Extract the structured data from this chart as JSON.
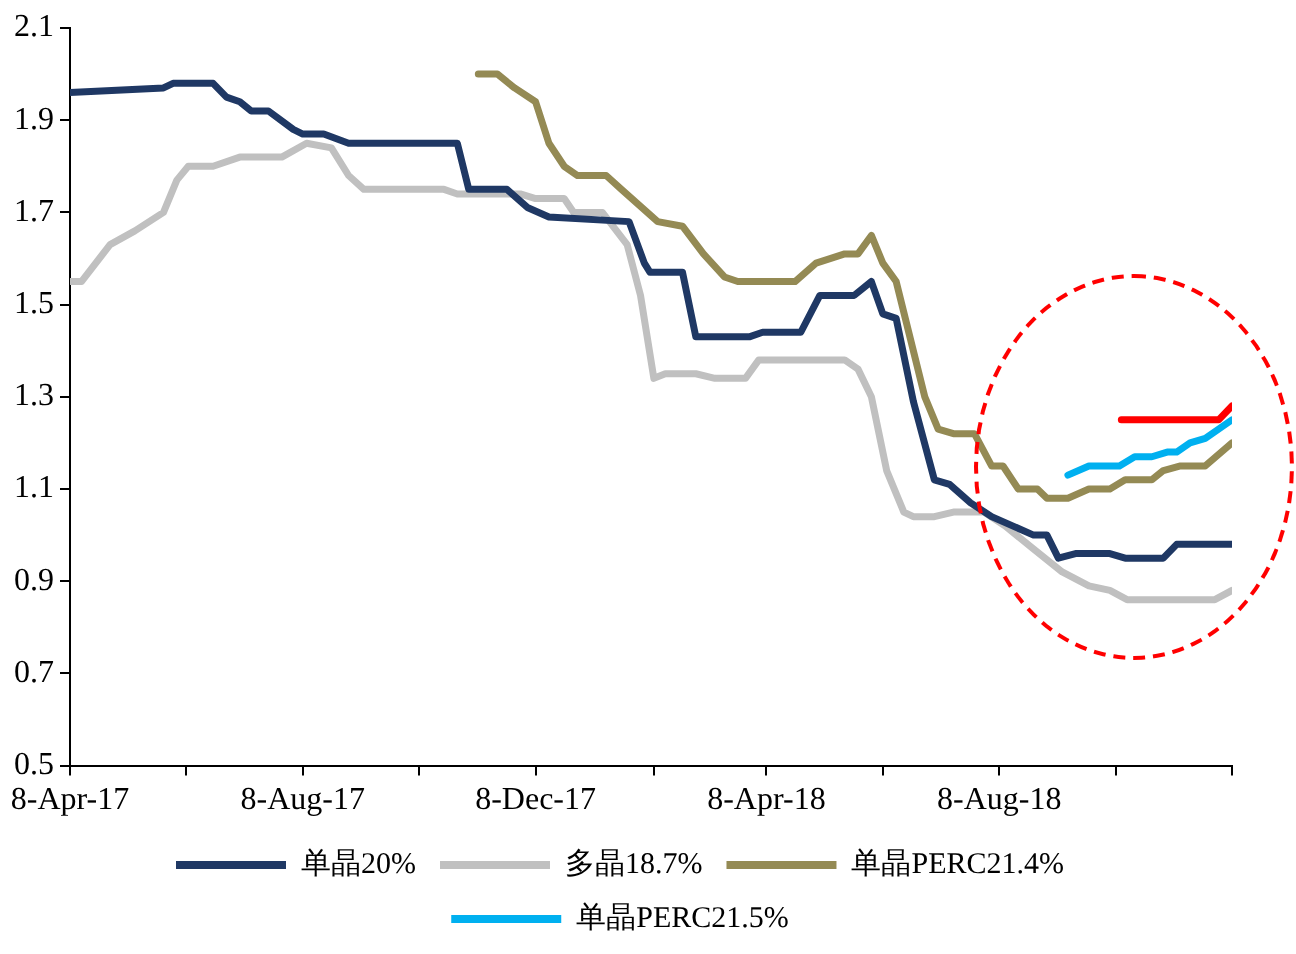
{
  "chart_data": {
    "type": "line",
    "ylim": [
      0.5,
      2.1
    ],
    "yticks": [
      0.5,
      0.7,
      0.9,
      1.1,
      1.3,
      1.5,
      1.7,
      1.9,
      2.1
    ],
    "xlim": [
      "2017-04-08",
      "2018-12-08"
    ],
    "xticks": [
      {
        "value": "2017-04-08",
        "label": "8-Apr-17"
      },
      {
        "value": "2017-06-08",
        "label": null
      },
      {
        "value": "2017-08-08",
        "label": "8-Aug-17"
      },
      {
        "value": "2017-10-08",
        "label": null
      },
      {
        "value": "2017-12-08",
        "label": "8-Dec-17"
      },
      {
        "value": "2018-02-08",
        "label": null
      },
      {
        "value": "2018-04-08",
        "label": "8-Apr-18"
      },
      {
        "value": "2018-06-08",
        "label": null
      },
      {
        "value": "2018-08-08",
        "label": "8-Aug-18"
      },
      {
        "value": "2018-10-08",
        "label": null
      },
      {
        "value": "2018-12-08",
        "label": null
      }
    ],
    "grid": false,
    "legend": "bottom",
    "marker": "none",
    "line_style": "solid",
    "series": [
      {
        "name": "单晶20%",
        "color": "#1f3864",
        "x": [
          "2017-04-08",
          "2017-05-27",
          "2017-06-01",
          "2017-06-22",
          "2017-06-29",
          "2017-07-06",
          "2017-07-12",
          "2017-07-21",
          "2017-08-03",
          "2017-08-08",
          "2017-08-19",
          "2017-09-01",
          "2017-10-28",
          "2017-11-03",
          "2017-11-23",
          "2017-12-04",
          "2017-12-15",
          "2018-01-26",
          "2018-02-03",
          "2018-02-06",
          "2018-02-23",
          "2018-03-02",
          "2018-03-30",
          "2018-04-06",
          "2018-04-26",
          "2018-05-06",
          "2018-05-11",
          "2018-05-24",
          "2018-06-02",
          "2018-06-08",
          "2018-06-15",
          "2018-06-24",
          "2018-07-05",
          "2018-07-13",
          "2018-07-24",
          "2018-08-04",
          "2018-08-15",
          "2018-08-26",
          "2018-09-02",
          "2018-09-08",
          "2018-09-17",
          "2018-10-05",
          "2018-10-13",
          "2018-11-02",
          "2018-11-09",
          "2018-12-08"
        ],
        "values": [
          1.96,
          1.97,
          1.98,
          1.98,
          1.95,
          1.94,
          1.92,
          1.92,
          1.88,
          1.87,
          1.87,
          1.85,
          1.85,
          1.75,
          1.75,
          1.71,
          1.69,
          1.68,
          1.59,
          1.57,
          1.57,
          1.43,
          1.43,
          1.44,
          1.44,
          1.52,
          1.52,
          1.52,
          1.55,
          1.48,
          1.47,
          1.29,
          1.12,
          1.11,
          1.07,
          1.04,
          1.02,
          1.0,
          1.0,
          0.95,
          0.96,
          0.96,
          0.95,
          0.95,
          0.98,
          0.98
        ]
      },
      {
        "name": "多晶18.7%",
        "color": "#c0c0c0",
        "x": [
          "2017-04-08",
          "2017-04-14",
          "2017-04-29",
          "2017-05-12",
          "2017-05-27",
          "2017-06-03",
          "2017-06-09",
          "2017-06-22",
          "2017-07-06",
          "2017-07-28",
          "2017-08-10",
          "2017-08-23",
          "2017-09-01",
          "2017-09-09",
          "2017-10-21",
          "2017-10-28",
          "2017-11-30",
          "2017-12-08",
          "2017-12-23",
          "2017-12-28",
          "2018-01-12",
          "2018-01-25",
          "2018-02-01",
          "2018-02-08",
          "2018-02-14",
          "2018-03-02",
          "2018-03-12",
          "2018-03-28",
          "2018-04-04",
          "2018-04-26",
          "2018-05-04",
          "2018-05-19",
          "2018-05-26",
          "2018-06-02",
          "2018-06-10",
          "2018-06-19",
          "2018-06-24",
          "2018-07-05",
          "2018-07-15",
          "2018-07-31",
          "2018-08-11",
          "2018-08-26",
          "2018-09-10",
          "2018-09-24",
          "2018-10-05",
          "2018-10-14",
          "2018-11-29",
          "2018-12-08"
        ],
        "values": [
          1.55,
          1.55,
          1.63,
          1.66,
          1.7,
          1.77,
          1.8,
          1.8,
          1.82,
          1.82,
          1.85,
          1.84,
          1.78,
          1.75,
          1.75,
          1.74,
          1.74,
          1.73,
          1.73,
          1.7,
          1.7,
          1.63,
          1.52,
          1.34,
          1.35,
          1.35,
          1.34,
          1.34,
          1.38,
          1.38,
          1.38,
          1.38,
          1.36,
          1.3,
          1.14,
          1.05,
          1.04,
          1.04,
          1.05,
          1.05,
          1.02,
          0.97,
          0.92,
          0.89,
          0.88,
          0.86,
          0.86,
          0.88
        ]
      },
      {
        "name": "单晶PERC21.4%",
        "color": "#948a54",
        "x": [
          "2017-11-08",
          "2017-11-18",
          "2017-11-27",
          "2017-12-08",
          "2017-12-15",
          "2017-12-23",
          "2017-12-30",
          "2018-01-14",
          "2018-01-22",
          "2018-02-10",
          "2018-02-23",
          "2018-03-06",
          "2018-03-17",
          "2018-03-24",
          "2018-04-23",
          "2018-05-04",
          "2018-05-19",
          "2018-05-26",
          "2018-06-02",
          "2018-06-08",
          "2018-06-15",
          "2018-06-30",
          "2018-07-07",
          "2018-07-15",
          "2018-07-26",
          "2018-08-04",
          "2018-08-10",
          "2018-08-18",
          "2018-08-28",
          "2018-09-02",
          "2018-09-13",
          "2018-09-24",
          "2018-10-05",
          "2018-10-13",
          "2018-10-27",
          "2018-11-02",
          "2018-11-11",
          "2018-11-24",
          "2018-12-08"
        ],
        "values": [
          2.0,
          2.0,
          1.97,
          1.94,
          1.85,
          1.8,
          1.78,
          1.78,
          1.75,
          1.68,
          1.67,
          1.61,
          1.56,
          1.55,
          1.55,
          1.59,
          1.61,
          1.61,
          1.65,
          1.59,
          1.55,
          1.3,
          1.23,
          1.22,
          1.22,
          1.15,
          1.15,
          1.1,
          1.1,
          1.08,
          1.08,
          1.1,
          1.1,
          1.12,
          1.12,
          1.14,
          1.15,
          1.15,
          1.2
        ]
      },
      {
        "name": "单晶PERC21.5%",
        "color": "#00b0f0",
        "x": [
          "2018-09-13",
          "2018-09-24",
          "2018-10-10",
          "2018-10-18",
          "2018-10-27",
          "2018-11-04",
          "2018-11-09",
          "2018-11-16",
          "2018-11-24",
          "2018-12-08"
        ],
        "values": [
          1.13,
          1.15,
          1.15,
          1.17,
          1.17,
          1.18,
          1.18,
          1.2,
          1.21,
          1.25
        ]
      },
      {
        "color": "#ff0000",
        "x": [
          "2018-10-11",
          "2018-12-01",
          "2018-12-08"
        ],
        "values": [
          1.25,
          1.25,
          1.28
        ]
      }
    ]
  }
}
